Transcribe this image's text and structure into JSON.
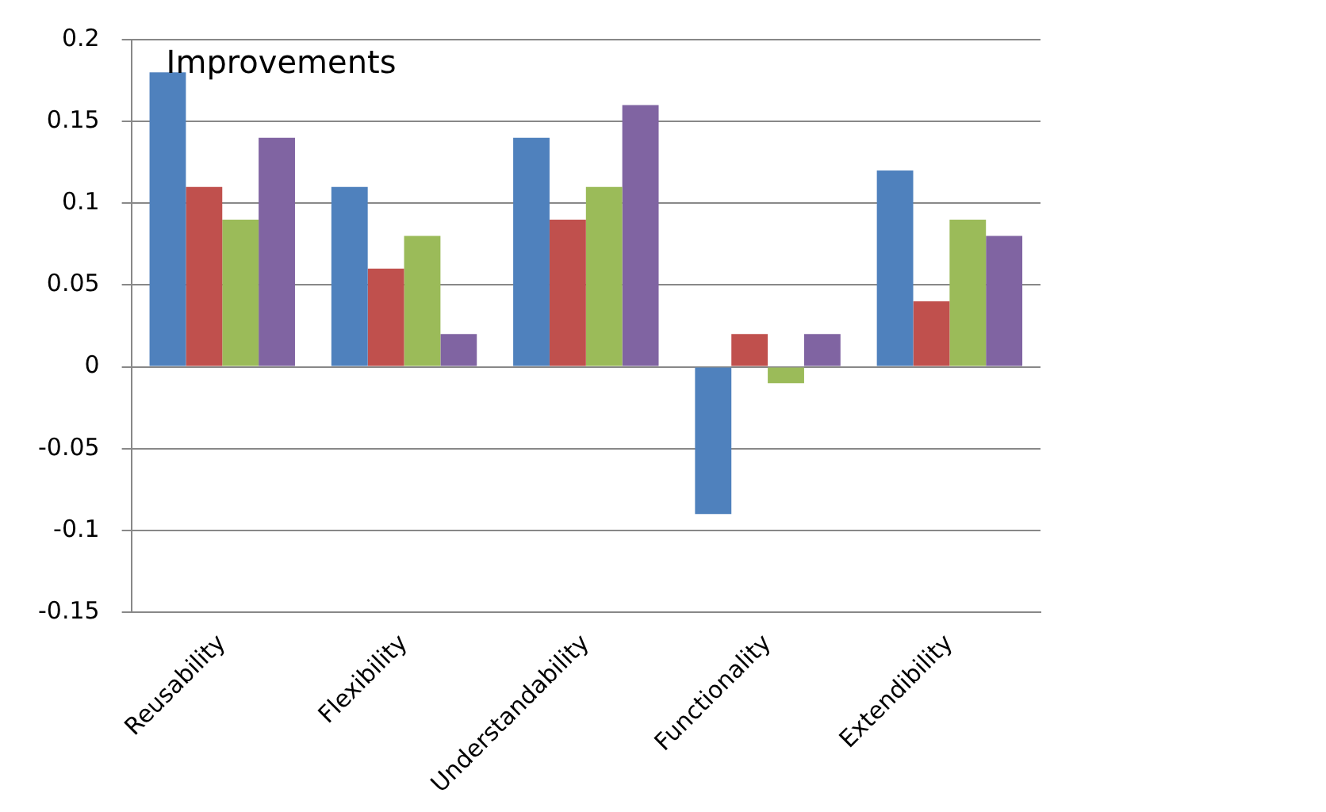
{
  "chart_data": {
    "type": "bar",
    "title": "Improvements",
    "categories": [
      "Reusability",
      "Flexibility",
      "Understandability",
      "Functionality",
      "Extendibility"
    ],
    "series": [
      {
        "color": "#4f81bd",
        "values": [
          0.18,
          0.11,
          0.14,
          -0.09,
          0.12
        ]
      },
      {
        "color": "#c0504d",
        "values": [
          0.11,
          0.06,
          0.09,
          0.02,
          0.04
        ]
      },
      {
        "color": "#9bbb59",
        "values": [
          0.09,
          0.08,
          0.11,
          -0.01,
          0.09
        ]
      },
      {
        "color": "#8064a2",
        "values": [
          0.14,
          0.02,
          0.16,
          0.02,
          0.08
        ]
      }
    ],
    "ylim": [
      -0.15,
      0.2
    ],
    "yticks": [
      -0.15,
      -0.1,
      -0.05,
      0,
      0.05,
      0.1,
      0.15,
      0.2
    ],
    "grid": "y",
    "legend": false
  }
}
